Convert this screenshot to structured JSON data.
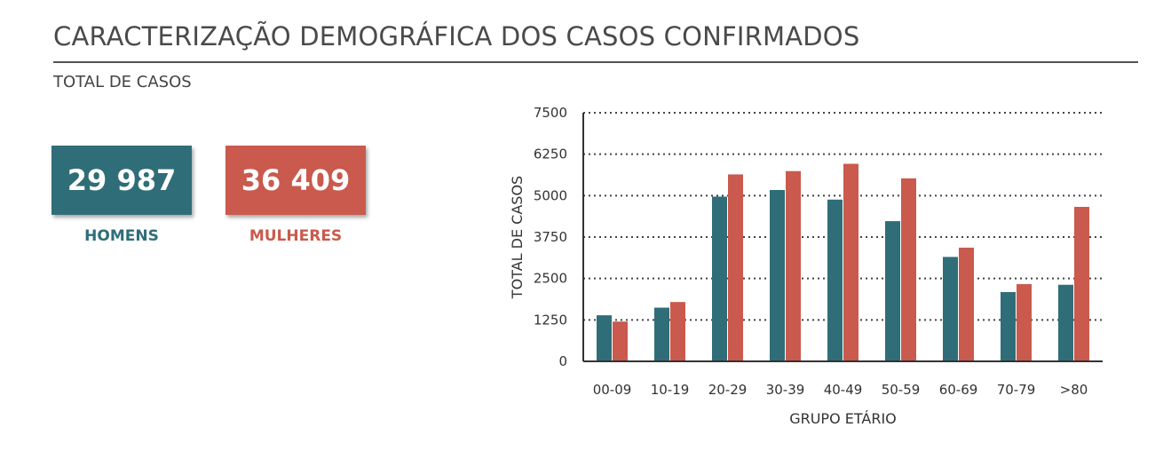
{
  "header": {
    "title": "CARACTERIZAÇÃO DEMOGRÁFICA DOS CASOS CONFIRMADOS",
    "subtitle": "TOTAL DE CASOS"
  },
  "stats": {
    "men": {
      "value": "29 987",
      "label": "HOMENS",
      "color": "#2f6e78"
    },
    "women": {
      "value": "36 409",
      "label": "MULHERES",
      "color": "#c95a4d"
    }
  },
  "chart_data": {
    "type": "bar",
    "categories": [
      "00-09",
      "10-19",
      "20-29",
      "30-39",
      "40-49",
      "50-59",
      "60-69",
      "70-79",
      ">80"
    ],
    "series": [
      {
        "color": "#2f6e78",
        "values": [
          1390,
          1620,
          4970,
          5170,
          4880,
          4230,
          3150,
          2090,
          2310
        ]
      },
      {
        "color": "#c95a4d",
        "values": [
          1200,
          1790,
          5640,
          5740,
          5960,
          5520,
          3430,
          2330,
          4660
        ]
      }
    ],
    "yticks": [
      "0",
      "1250",
      "2500",
      "3750",
      "5000",
      "6250",
      "7500"
    ],
    "ylim": [
      0,
      7500
    ],
    "xlabel": "GRUPO ETÁRIO",
    "ylabel": "TOTAL DE CASOS",
    "grid": "dotted horizontal"
  }
}
